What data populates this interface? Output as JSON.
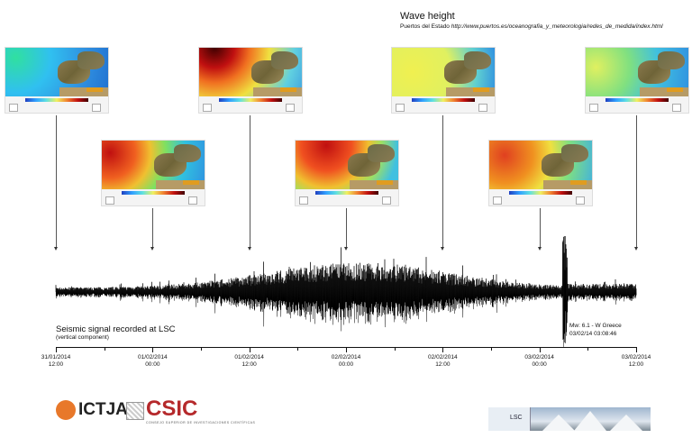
{
  "header": {
    "title": "Wave height",
    "source_prefix": "Puertos del Estado",
    "source_url": "http://www.puertos.es/oceanografia_y_meteorologia/redes_de_medida/index.html"
  },
  "maps": [
    {
      "row": 1,
      "sea_gradient": "radial-gradient(circle at 10% 20%,#30e0a0,#30c0f0 35%,#3090e0 70%,#2070d0)"
    },
    {
      "row": 2,
      "sea_gradient": "radial-gradient(circle at 8% 25%,#c01010,#f06020 25%,#f0c030 40%,#80e060 55%,#30c0e0 75%,#3090e0)"
    },
    {
      "row": 1,
      "sea_gradient": "radial-gradient(circle at 15% 0%,#400000,#c01010 20%,#f07020 35%,#f0e040 55%,#60d0e0 80%,#40a0e0)"
    },
    {
      "row": 2,
      "sea_gradient": "radial-gradient(circle at 30% 10%,#c01010,#f05020 30%,#f0c030 50%,#a0e060 65%,#40c0e0 85%)"
    },
    {
      "row": 1,
      "sea_gradient": "radial-gradient(circle at 20% 50%,#f0f050,#e0f060 45%,#60d0d0 75%,#3090e0)"
    },
    {
      "row": 2,
      "sea_gradient": "radial-gradient(circle at 15% 30%,#e04020,#f09020 30%,#f0e040 50%,#80e080 70%,#40b0e0)"
    },
    {
      "row": 1,
      "sea_gradient": "radial-gradient(circle at 10% 40%,#e0f060,#80e080 35%,#40c0e0 65%,#3090e0)"
    }
  ],
  "seismic": {
    "label": "Seismic signal recorded at LSC",
    "sublabel": "(vertical  component)",
    "event_line1": "Mw: 6.1 - W Greece",
    "event_line2": "03/02/14 03:08:46"
  },
  "time_axis": {
    "ticks": [
      {
        "date": "31/01/2014",
        "time": "12:00"
      },
      {
        "date": "01/02/2014",
        "time": "00:00"
      },
      {
        "date": "01/02/2014",
        "time": "12:00"
      },
      {
        "date": "02/02/2014",
        "time": "00:00"
      },
      {
        "date": "02/02/2014",
        "time": "12:00"
      },
      {
        "date": "03/02/2014",
        "time": "00:00"
      },
      {
        "date": "03/02/2014",
        "time": "12:00"
      }
    ]
  },
  "logos": {
    "ictja": "ICTJA",
    "csic": "CSIC",
    "csic_sub": "CONSEJO SUPERIOR DE INVESTIGACIONES CIENTÍFICAS",
    "lsc": "LSC"
  },
  "colors": {
    "csic_red": "#b5292b",
    "ictja_orange": "#e8782a"
  }
}
